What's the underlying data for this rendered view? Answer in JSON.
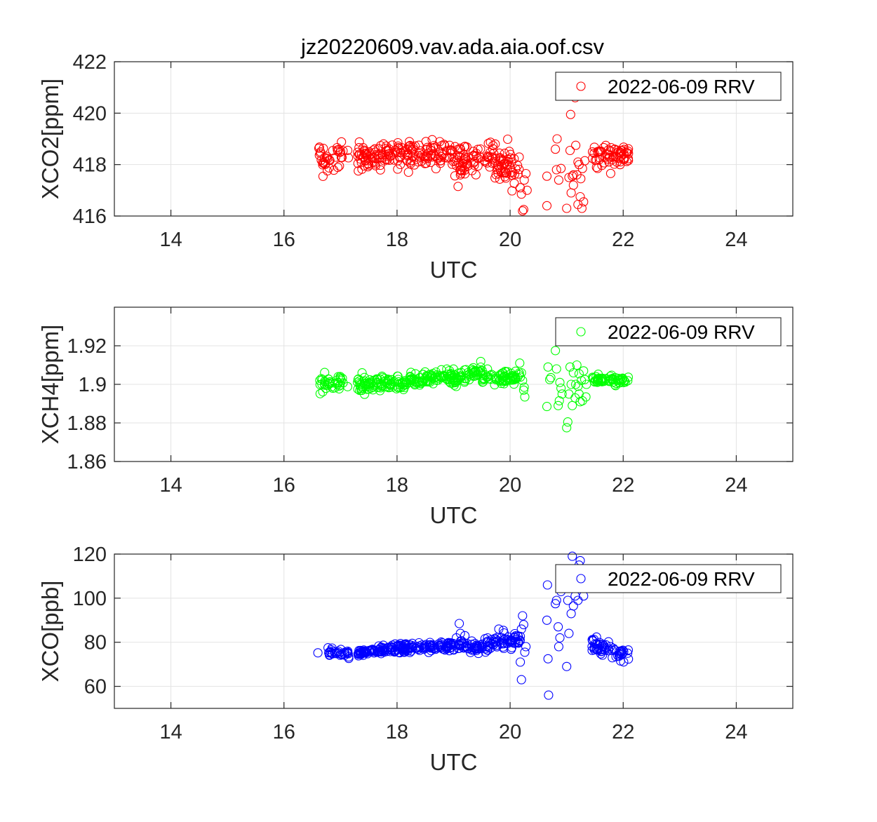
{
  "figure_title": "jz20220609.vav.ada.aia.oof.csv",
  "chart_data": [
    {
      "type": "scatter",
      "title": "jz20220609.vav.ada.aia.oof.csv",
      "xlabel": "UTC",
      "ylabel": "XCO2[ppm]",
      "xlim": [
        13,
        25
      ],
      "ylim": [
        416,
        422
      ],
      "xticks": [
        14,
        16,
        18,
        20,
        22,
        24
      ],
      "yticks": [
        416,
        418,
        420,
        422
      ],
      "xtick_labels": [
        "14",
        "16",
        "18",
        "20",
        "22",
        "24"
      ],
      "ytick_labels": [
        "416",
        "418",
        "420",
        "422"
      ],
      "grid": true,
      "legend_position": "top-right",
      "series": [
        {
          "name": "2022-06-09 RRV",
          "color": "#ff0000",
          "marker": "open-circle",
          "segments": [
            {
              "x0": 16.6,
              "x1": 17.15,
              "n": 40,
              "base": 418.3,
              "slope": 0.0,
              "noise": 0.3,
              "seed": 11
            },
            {
              "x0": 17.3,
              "x1": 19.0,
              "n": 170,
              "base": 418.35,
              "slope": 0.0,
              "noise": 0.28,
              "seed": 12
            },
            {
              "x0": 19.0,
              "x1": 19.75,
              "n": 70,
              "base": 418.2,
              "slope": 0.0,
              "noise": 0.3,
              "seed": 13
            },
            {
              "x0": 19.75,
              "x1": 20.2,
              "n": 50,
              "base": 418.0,
              "slope": 0.0,
              "noise": 0.35,
              "seed": 14
            },
            {
              "x0": 21.45,
              "x1": 22.1,
              "n": 65,
              "base": 418.35,
              "slope": 0.0,
              "noise": 0.22,
              "seed": 15
            }
          ],
          "points": [
            [
              19.08,
              417.15
            ],
            [
              19.12,
              417.6
            ],
            [
              19.15,
              417.75
            ],
            [
              19.2,
              417.9
            ],
            [
              20.18,
              417.1
            ],
            [
              20.2,
              416.85
            ],
            [
              20.22,
              416.2
            ],
            [
              20.25,
              417.4
            ],
            [
              20.24,
              416.25
            ],
            [
              20.3,
              417.0
            ],
            [
              20.28,
              417.65
            ],
            [
              20.65,
              416.4
            ],
            [
              20.65,
              417.55
            ],
            [
              20.8,
              418.6
            ],
            [
              20.83,
              419.0
            ],
            [
              20.82,
              417.8
            ],
            [
              20.86,
              417.4
            ],
            [
              20.9,
              417.85
            ],
            [
              21.0,
              416.3
            ],
            [
              21.04,
              417.5
            ],
            [
              21.06,
              418.55
            ],
            [
              21.07,
              419.95
            ],
            [
              21.08,
              416.9
            ],
            [
              21.1,
              417.55
            ],
            [
              21.12,
              417.2
            ],
            [
              21.15,
              420.6
            ],
            [
              21.16,
              418.75
            ],
            [
              21.18,
              417.6
            ],
            [
              21.2,
              416.45
            ],
            [
              21.22,
              418.0
            ],
            [
              21.24,
              416.75
            ],
            [
              21.25,
              417.45
            ],
            [
              21.27,
              416.3
            ],
            [
              21.28,
              417.85
            ],
            [
              21.3,
              416.55
            ],
            [
              21.32,
              418.15
            ],
            [
              21.12,
              417.6
            ],
            [
              21.2,
              418.1
            ]
          ]
        }
      ]
    },
    {
      "type": "scatter",
      "xlabel": "UTC",
      "ylabel": "XCH4[ppm]",
      "xlim": [
        13,
        25
      ],
      "ylim": [
        1.86,
        1.94
      ],
      "xticks": [
        14,
        16,
        18,
        20,
        22,
        24
      ],
      "yticks": [
        1.86,
        1.88,
        1.9,
        1.92
      ],
      "xtick_labels": [
        "14",
        "16",
        "18",
        "20",
        "22",
        "24"
      ],
      "ytick_labels": [
        "1.86",
        "1.88",
        "1.9",
        "1.92"
      ],
      "grid": true,
      "legend_position": "top-right",
      "series": [
        {
          "name": "2022-06-09 RRV",
          "color": "#00ff00",
          "marker": "open-circle",
          "segments": [
            {
              "x0": 16.6,
              "x1": 17.15,
              "n": 40,
              "base": 1.8995,
              "slope": 0.0015,
              "noise": 0.0022,
              "seed": 21
            },
            {
              "x0": 17.3,
              "x1": 18.2,
              "n": 100,
              "base": 1.9002,
              "slope": 0.0,
              "noise": 0.0018,
              "seed": 22
            },
            {
              "x0": 18.2,
              "x1": 19.0,
              "n": 90,
              "base": 1.9028,
              "slope": 0.0015,
              "noise": 0.0016,
              "seed": 23
            },
            {
              "x0": 19.0,
              "x1": 19.5,
              "n": 55,
              "base": 1.9025,
              "slope": 0.004,
              "noise": 0.0018,
              "seed": 24
            },
            {
              "x0": 19.5,
              "x1": 20.2,
              "n": 70,
              "base": 1.9035,
              "slope": 0.0,
              "noise": 0.0016,
              "seed": 25
            },
            {
              "x0": 21.45,
              "x1": 22.1,
              "n": 60,
              "base": 1.9025,
              "slope": 0.0,
              "noise": 0.0013,
              "seed": 26
            }
          ],
          "points": [
            [
              20.17,
              1.911
            ],
            [
              20.2,
              1.906
            ],
            [
              20.22,
              1.902
            ],
            [
              20.24,
              1.897
            ],
            [
              20.26,
              1.8935
            ],
            [
              20.25,
              1.8985
            ],
            [
              20.65,
              1.8885
            ],
            [
              20.67,
              1.909
            ],
            [
              20.7,
              1.9025
            ],
            [
              20.72,
              1.9035
            ],
            [
              20.8,
              1.9175
            ],
            [
              20.82,
              1.908
            ],
            [
              20.85,
              1.889
            ],
            [
              20.87,
              1.8915
            ],
            [
              20.88,
              1.901
            ],
            [
              20.9,
              1.898
            ],
            [
              20.92,
              1.895
            ],
            [
              21.0,
              1.8775
            ],
            [
              21.02,
              1.8805
            ],
            [
              21.04,
              1.895
            ],
            [
              21.06,
              1.909
            ],
            [
              21.08,
              1.9
            ],
            [
              21.1,
              1.889
            ],
            [
              21.12,
              1.906
            ],
            [
              21.15,
              1.893
            ],
            [
              21.18,
              1.91
            ],
            [
              21.2,
              1.899
            ],
            [
              21.22,
              1.9055
            ],
            [
              21.24,
              1.891
            ],
            [
              21.26,
              1.902
            ],
            [
              21.28,
              1.8915
            ],
            [
              21.3,
              1.907
            ],
            [
              21.32,
              1.9025
            ],
            [
              21.34,
              1.8935
            ],
            [
              21.35,
              1.9
            ],
            [
              21.16,
              1.9
            ],
            [
              21.22,
              1.895
            ]
          ]
        }
      ]
    },
    {
      "type": "scatter",
      "xlabel": "UTC",
      "ylabel": "XCO[ppb]",
      "xlim": [
        13,
        25
      ],
      "ylim": [
        50,
        120
      ],
      "xticks": [
        14,
        16,
        18,
        20,
        22,
        24
      ],
      "yticks": [
        60,
        80,
        100,
        120
      ],
      "xtick_labels": [
        "14",
        "16",
        "18",
        "20",
        "22",
        "24"
      ],
      "ytick_labels": [
        "60",
        "80",
        "100",
        "120"
      ],
      "grid": true,
      "legend_position": "top-right",
      "series": [
        {
          "name": "2022-06-09 RRV",
          "color": "#0000ff",
          "marker": "open-circle",
          "segments": [
            {
              "x0": 16.75,
              "x1": 17.15,
              "n": 30,
              "base": 75.5,
              "slope": -1.0,
              "noise": 1.0,
              "seed": 31
            },
            {
              "x0": 17.3,
              "x1": 18.0,
              "n": 80,
              "base": 75.0,
              "slope": 2.5,
              "noise": 1.0,
              "seed": 32
            },
            {
              "x0": 18.0,
              "x1": 19.0,
              "n": 110,
              "base": 77.3,
              "slope": 1.0,
              "noise": 1.1,
              "seed": 33
            },
            {
              "x0": 19.0,
              "x1": 19.6,
              "n": 60,
              "base": 78.0,
              "slope": 0.0,
              "noise": 1.5,
              "seed": 34
            },
            {
              "x0": 19.6,
              "x1": 20.2,
              "n": 60,
              "base": 79.5,
              "slope": 1.0,
              "noise": 2.0,
              "seed": 35
            },
            {
              "x0": 21.45,
              "x1": 22.1,
              "n": 60,
              "base": 78.5,
              "slope": -4.0,
              "noise": 1.6,
              "seed": 36
            }
          ],
          "points": [
            [
              16.6,
              75.2
            ],
            [
              16.78,
              77.5
            ],
            [
              19.1,
              88.5
            ],
            [
              19.05,
              82.0
            ],
            [
              19.12,
              84.0
            ],
            [
              19.2,
              83.0
            ],
            [
              19.8,
              86.0
            ],
            [
              20.15,
              80.0
            ],
            [
              20.18,
              71.0
            ],
            [
              20.2,
              63.0
            ],
            [
              20.22,
              92.0
            ],
            [
              20.24,
              88.0
            ],
            [
              20.2,
              86.0
            ],
            [
              20.26,
              75.5
            ],
            [
              20.28,
              78.0
            ],
            [
              20.65,
              90.0
            ],
            [
              20.66,
              106.0
            ],
            [
              20.67,
              72.5
            ],
            [
              20.68,
              56.0
            ],
            [
              20.8,
              97.5
            ],
            [
              20.82,
              99.0
            ],
            [
              20.85,
              87.0
            ],
            [
              20.86,
              78.0
            ],
            [
              20.88,
              82.0
            ],
            [
              20.9,
              103.0
            ],
            [
              21.0,
              69.0
            ],
            [
              21.02,
              99.0
            ],
            [
              21.04,
              84.0
            ],
            [
              21.06,
              105.0
            ],
            [
              21.08,
              93.0
            ],
            [
              21.1,
              119.0
            ],
            [
              21.12,
              96.5
            ],
            [
              21.15,
              101.0
            ],
            [
              21.18,
              110.0
            ],
            [
              21.2,
              99.0
            ],
            [
              21.22,
              115.0
            ],
            [
              21.24,
              117.0
            ],
            [
              21.26,
              107.0
            ],
            [
              21.28,
              113.0
            ],
            [
              21.3,
              101.0
            ],
            [
              21.32,
              111.0
            ],
            [
              21.18,
              108.0
            ]
          ]
        }
      ]
    }
  ]
}
